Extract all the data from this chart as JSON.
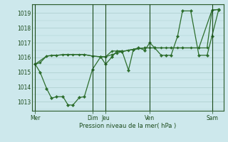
{
  "background_color": "#cde8ec",
  "grid_color": "#aacccc",
  "line_color": "#2d6e2d",
  "marker_color": "#2d6e2d",
  "xlabel": "Pression niveau de la mer( hPa )",
  "ylim": [
    1012.4,
    1019.6
  ],
  "yticks": [
    1013,
    1014,
    1015,
    1016,
    1017,
    1018,
    1019
  ],
  "x_day_labels": [
    "Mer",
    "Dim",
    "Jeu",
    "Ven",
    "Sam"
  ],
  "x_day_positions": [
    0.0,
    3.5,
    4.3,
    7.0,
    10.8
  ],
  "x_vlines": [
    0.0,
    3.5,
    4.3,
    7.0,
    10.8
  ],
  "xlim": [
    -0.2,
    11.5
  ],
  "series": [
    {
      "points": [
        [
          0.0,
          1015.55
        ],
        [
          0.3,
          1015.65
        ],
        [
          0.7,
          1016.1
        ],
        [
          1.0,
          1016.15
        ],
        [
          1.3,
          1016.15
        ],
        [
          1.7,
          1016.2
        ],
        [
          2.0,
          1016.2
        ],
        [
          2.3,
          1016.2
        ],
        [
          2.7,
          1016.2
        ],
        [
          3.0,
          1016.2
        ],
        [
          3.5,
          1016.1
        ],
        [
          4.0,
          1016.05
        ],
        [
          4.3,
          1016.05
        ],
        [
          4.7,
          1016.2
        ],
        [
          5.0,
          1016.3
        ],
        [
          5.3,
          1016.4
        ],
        [
          5.7,
          1016.5
        ],
        [
          6.0,
          1016.55
        ],
        [
          6.3,
          1016.6
        ],
        [
          6.7,
          1016.65
        ],
        [
          7.0,
          1016.65
        ],
        [
          7.3,
          1016.65
        ],
        [
          7.7,
          1016.65
        ],
        [
          8.0,
          1016.65
        ],
        [
          8.3,
          1016.65
        ],
        [
          8.7,
          1016.65
        ],
        [
          9.0,
          1016.65
        ],
        [
          9.5,
          1016.65
        ],
        [
          10.0,
          1016.65
        ],
        [
          10.5,
          1016.65
        ],
        [
          10.8,
          1019.2
        ],
        [
          11.2,
          1019.25
        ]
      ],
      "linewidth": 0.9,
      "markersize": 1.8
    },
    {
      "points": [
        [
          0.0,
          1015.55
        ],
        [
          0.3,
          1015.0
        ],
        [
          0.7,
          1013.9
        ],
        [
          1.0,
          1013.25
        ],
        [
          1.3,
          1013.35
        ],
        [
          1.7,
          1013.35
        ],
        [
          2.0,
          1012.8
        ],
        [
          2.3,
          1012.78
        ],
        [
          2.7,
          1013.3
        ],
        [
          3.0,
          1013.35
        ],
        [
          3.5,
          1015.2
        ],
        [
          4.0,
          1016.05
        ],
        [
          4.3,
          1015.55
        ],
        [
          4.7,
          1016.05
        ],
        [
          5.0,
          1016.45
        ],
        [
          5.3,
          1016.45
        ],
        [
          5.7,
          1015.15
        ],
        [
          6.0,
          1016.55
        ],
        [
          6.3,
          1016.65
        ],
        [
          6.7,
          1016.5
        ],
        [
          7.0,
          1017.0
        ],
        [
          7.3,
          1016.65
        ],
        [
          7.7,
          1016.15
        ],
        [
          8.0,
          1016.15
        ],
        [
          8.3,
          1016.15
        ],
        [
          8.7,
          1017.45
        ],
        [
          9.0,
          1019.15
        ],
        [
          9.5,
          1019.15
        ],
        [
          10.0,
          1016.15
        ],
        [
          10.5,
          1016.15
        ],
        [
          10.8,
          1017.45
        ],
        [
          11.2,
          1019.2
        ]
      ],
      "linewidth": 0.9,
      "markersize": 2.2
    },
    {
      "points": [
        [
          0.0,
          1015.55
        ],
        [
          0.7,
          1016.1
        ],
        [
          1.3,
          1016.15
        ],
        [
          2.0,
          1016.2
        ],
        [
          3.0,
          1016.2
        ],
        [
          3.5,
          1016.1
        ],
        [
          4.0,
          1016.05
        ],
        [
          4.3,
          1016.05
        ],
        [
          4.7,
          1016.45
        ],
        [
          5.3,
          1016.4
        ],
        [
          6.0,
          1016.55
        ],
        [
          6.7,
          1016.65
        ],
        [
          7.3,
          1016.65
        ],
        [
          8.3,
          1016.65
        ],
        [
          9.0,
          1016.65
        ],
        [
          10.0,
          1016.65
        ],
        [
          10.8,
          1019.2
        ],
        [
          11.2,
          1019.25
        ]
      ],
      "linewidth": 0.9,
      "markersize": 1.8
    }
  ]
}
